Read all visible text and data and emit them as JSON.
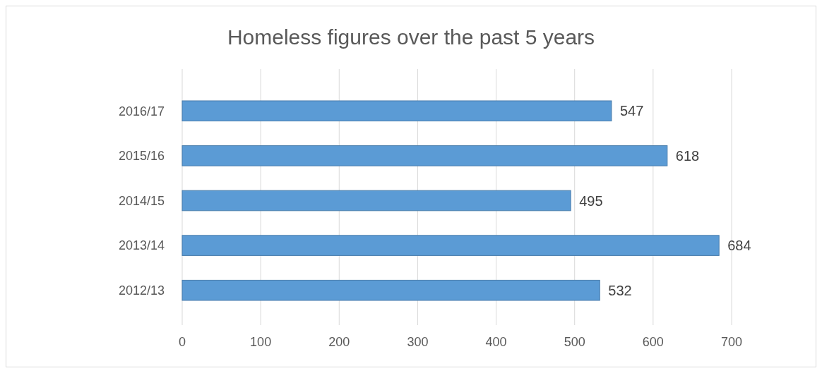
{
  "chart_data": {
    "type": "bar",
    "orientation": "horizontal",
    "title": "Homeless figures over the past 5 years",
    "categories": [
      "2016/17",
      "2015/16",
      "2014/15",
      "2013/14",
      "2012/13"
    ],
    "values": [
      547,
      618,
      495,
      684,
      532
    ],
    "color": "#5b9bd5",
    "xlim": [
      0,
      700
    ],
    "xticks": [
      0,
      100,
      200,
      300,
      400,
      500,
      600,
      700
    ],
    "grid": "x",
    "data_labels": true
  }
}
